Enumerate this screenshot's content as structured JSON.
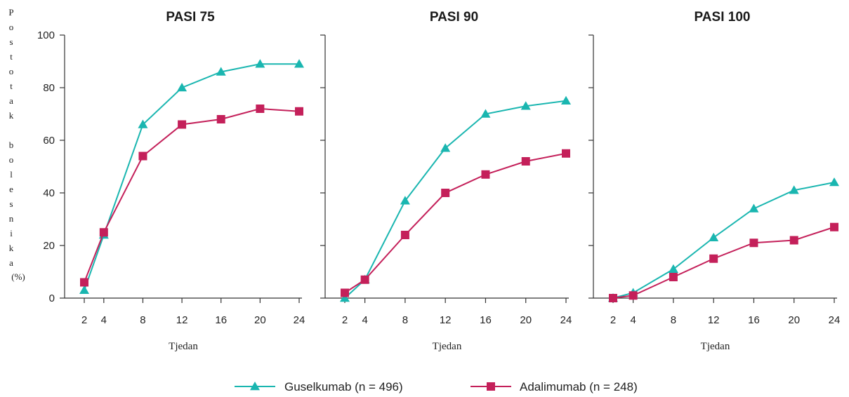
{
  "chart_data": {
    "type": "line",
    "ylabel": "Postotak bolesnika (%)",
    "xlabel": "Tjedan",
    "ylim": [
      0,
      100
    ],
    "yticks": [
      0,
      20,
      40,
      60,
      80,
      100
    ],
    "x": [
      2,
      4,
      8,
      12,
      16,
      20,
      24
    ],
    "legend_position": "bottom",
    "series_styles": [
      {
        "name": "Guselkumab (n = 496)",
        "color": "#1ab6b0",
        "marker": "triangle"
      },
      {
        "name": "Adalimumab (n = 248)",
        "color": "#c4205a",
        "marker": "square"
      }
    ],
    "panels": [
      {
        "title": "PASI 75",
        "series": [
          {
            "name": "Guselkumab (n = 496)",
            "values": [
              3,
              24,
              66,
              80,
              86,
              89,
              89
            ]
          },
          {
            "name": "Adalimumab (n = 248)",
            "values": [
              6,
              25,
              54,
              66,
              68,
              72,
              71
            ]
          }
        ]
      },
      {
        "title": "PASI 90",
        "series": [
          {
            "name": "Guselkumab (n = 496)",
            "values": [
              0,
              7,
              37,
              57,
              70,
              73,
              75
            ]
          },
          {
            "name": "Adalimumab (n = 248)",
            "values": [
              2,
              7,
              24,
              40,
              47,
              52,
              55
            ]
          }
        ]
      },
      {
        "title": "PASI 100",
        "series": [
          {
            "name": "Guselkumab (n = 496)",
            "values": [
              0,
              2,
              11,
              23,
              34,
              41,
              44
            ]
          },
          {
            "name": "Adalimumab (n = 248)",
            "values": [
              0,
              1,
              8,
              15,
              21,
              22,
              27
            ]
          }
        ]
      }
    ]
  }
}
